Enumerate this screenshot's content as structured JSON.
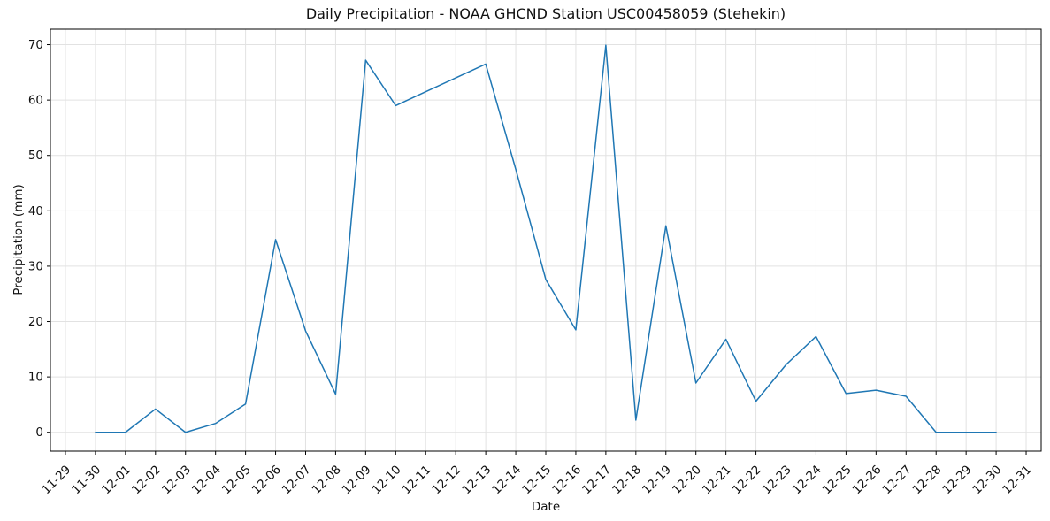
{
  "chart_data": {
    "type": "line",
    "title": "Daily Precipitation - NOAA GHCND Station USC00458059 (Stehekin)",
    "xlabel": "Date",
    "ylabel": "Precipitation (mm)",
    "x": [
      "11-30",
      "12-01",
      "12-02",
      "12-03",
      "12-04",
      "12-05",
      "12-06",
      "12-07",
      "12-08",
      "12-09",
      "12-10",
      "12-11",
      "12-12",
      "12-13",
      "12-14",
      "12-15",
      "12-16",
      "12-17",
      "12-18",
      "12-19",
      "12-20",
      "12-21",
      "12-22",
      "12-23",
      "12-24",
      "12-25",
      "12-26",
      "12-27",
      "12-28",
      "12-29",
      "12-30"
    ],
    "values": [
      0.0,
      0.0,
      4.2,
      0.0,
      1.6,
      5.1,
      34.8,
      18.3,
      6.9,
      67.2,
      59.0,
      61.5,
      64.0,
      66.5,
      47.5,
      27.6,
      18.5,
      69.9,
      2.2,
      37.3,
      8.9,
      16.8,
      5.6,
      12.2,
      17.3,
      7.0,
      7.6,
      6.5,
      0.0,
      0.0,
      0.0
    ],
    "x_tick_labels": [
      "11-29",
      "11-30",
      "12-01",
      "12-02",
      "12-03",
      "12-04",
      "12-05",
      "12-06",
      "12-07",
      "12-08",
      "12-09",
      "12-10",
      "12-11",
      "12-12",
      "12-13",
      "12-14",
      "12-15",
      "12-16",
      "12-17",
      "12-18",
      "12-19",
      "12-20",
      "12-21",
      "12-22",
      "12-23",
      "12-24",
      "12-25",
      "12-26",
      "12-27",
      "12-28",
      "12-29",
      "12-30",
      "12-31"
    ],
    "y_ticks": [
      0,
      10,
      20,
      30,
      40,
      50,
      60,
      70
    ],
    "ylim": [
      -3.4,
      72.8
    ],
    "xlim_days": [
      -1.5,
      31.5
    ],
    "x_tick_rotation_deg": 45,
    "grid": true,
    "legend": "none",
    "line_color": "#1f77b4",
    "grid_color": "#e2e2e2",
    "spine_color": "#000000",
    "background_color": "#ffffff"
  }
}
